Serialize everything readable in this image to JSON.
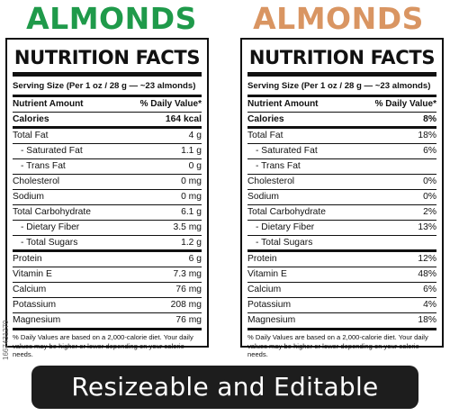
{
  "colors": {
    "green": "#1f9a4a",
    "orange": "#d99562",
    "dark": "#1d1d1d"
  },
  "left": {
    "title": "ALMONDS",
    "heading": "NUTRITION FACTS",
    "serving": "Serving Size (Per 1 oz / 28 g — ~23 almonds)",
    "col_nutrient": "Nutrient Amount",
    "col_value": "% Daily Value*",
    "rows": [
      {
        "name": "Calories",
        "value": "164 kcal"
      },
      {
        "name": "Total Fat",
        "value": "4 g"
      },
      {
        "name": "- Saturated Fat",
        "value": "1.1 g"
      },
      {
        "name": "- Trans Fat",
        "value": "0 g"
      },
      {
        "name": "Cholesterol",
        "value": "0 mg"
      },
      {
        "name": "Sodium",
        "value": "0 mg"
      },
      {
        "name": "Total Carbohydrate",
        "value": "6.1 g"
      },
      {
        "name": "- Dietary Fiber",
        "value": "3.5 mg"
      },
      {
        "name": "- Total Sugars",
        "value": "1.2 g"
      },
      {
        "name": "Protein",
        "value": "6 g"
      },
      {
        "name": "Vitamin E",
        "value": "7.3 mg"
      },
      {
        "name": "Calcium",
        "value": "76 mg"
      },
      {
        "name": "Potassium",
        "value": "208 mg"
      },
      {
        "name": "Magnesium",
        "value": "76 mg"
      }
    ],
    "footnote": "% Daily Values are based on a 2,000-calorie diet. Your daily values may be higher or lower depending on your calorie needs."
  },
  "right": {
    "title": "ALMONDS",
    "heading": "NUTRITION FACTS",
    "serving": "Serving Size (Per 1 oz / 28 g — ~23 almonds)",
    "col_nutrient": "Nutrient Amount",
    "col_value": "% Daily Value*",
    "rows": [
      {
        "name": "Calories",
        "value": "8%"
      },
      {
        "name": "Total Fat",
        "value": "18%"
      },
      {
        "name": "- Saturated Fat",
        "value": "6%"
      },
      {
        "name": "- Trans Fat",
        "value": ""
      },
      {
        "name": "Cholesterol",
        "value": "0%"
      },
      {
        "name": "Sodium",
        "value": "0%"
      },
      {
        "name": "Total Carbohydrate",
        "value": "2%"
      },
      {
        "name": "- Dietary Fiber",
        "value": "13%"
      },
      {
        "name": "- Total Sugars",
        "value": ""
      },
      {
        "name": "Protein",
        "value": "12%"
      },
      {
        "name": "Vitamin E",
        "value": "48%"
      },
      {
        "name": "Calcium",
        "value": "6%"
      },
      {
        "name": "Potassium",
        "value": "4%"
      },
      {
        "name": "Magnesium",
        "value": "18%"
      }
    ],
    "footnote": "% Daily Values are based on a 2,000-calorie diet. Your daily values may be higher or lower depending on your calorie needs."
  },
  "banner": "Resizeable and Editable",
  "side_text": "1667431270"
}
